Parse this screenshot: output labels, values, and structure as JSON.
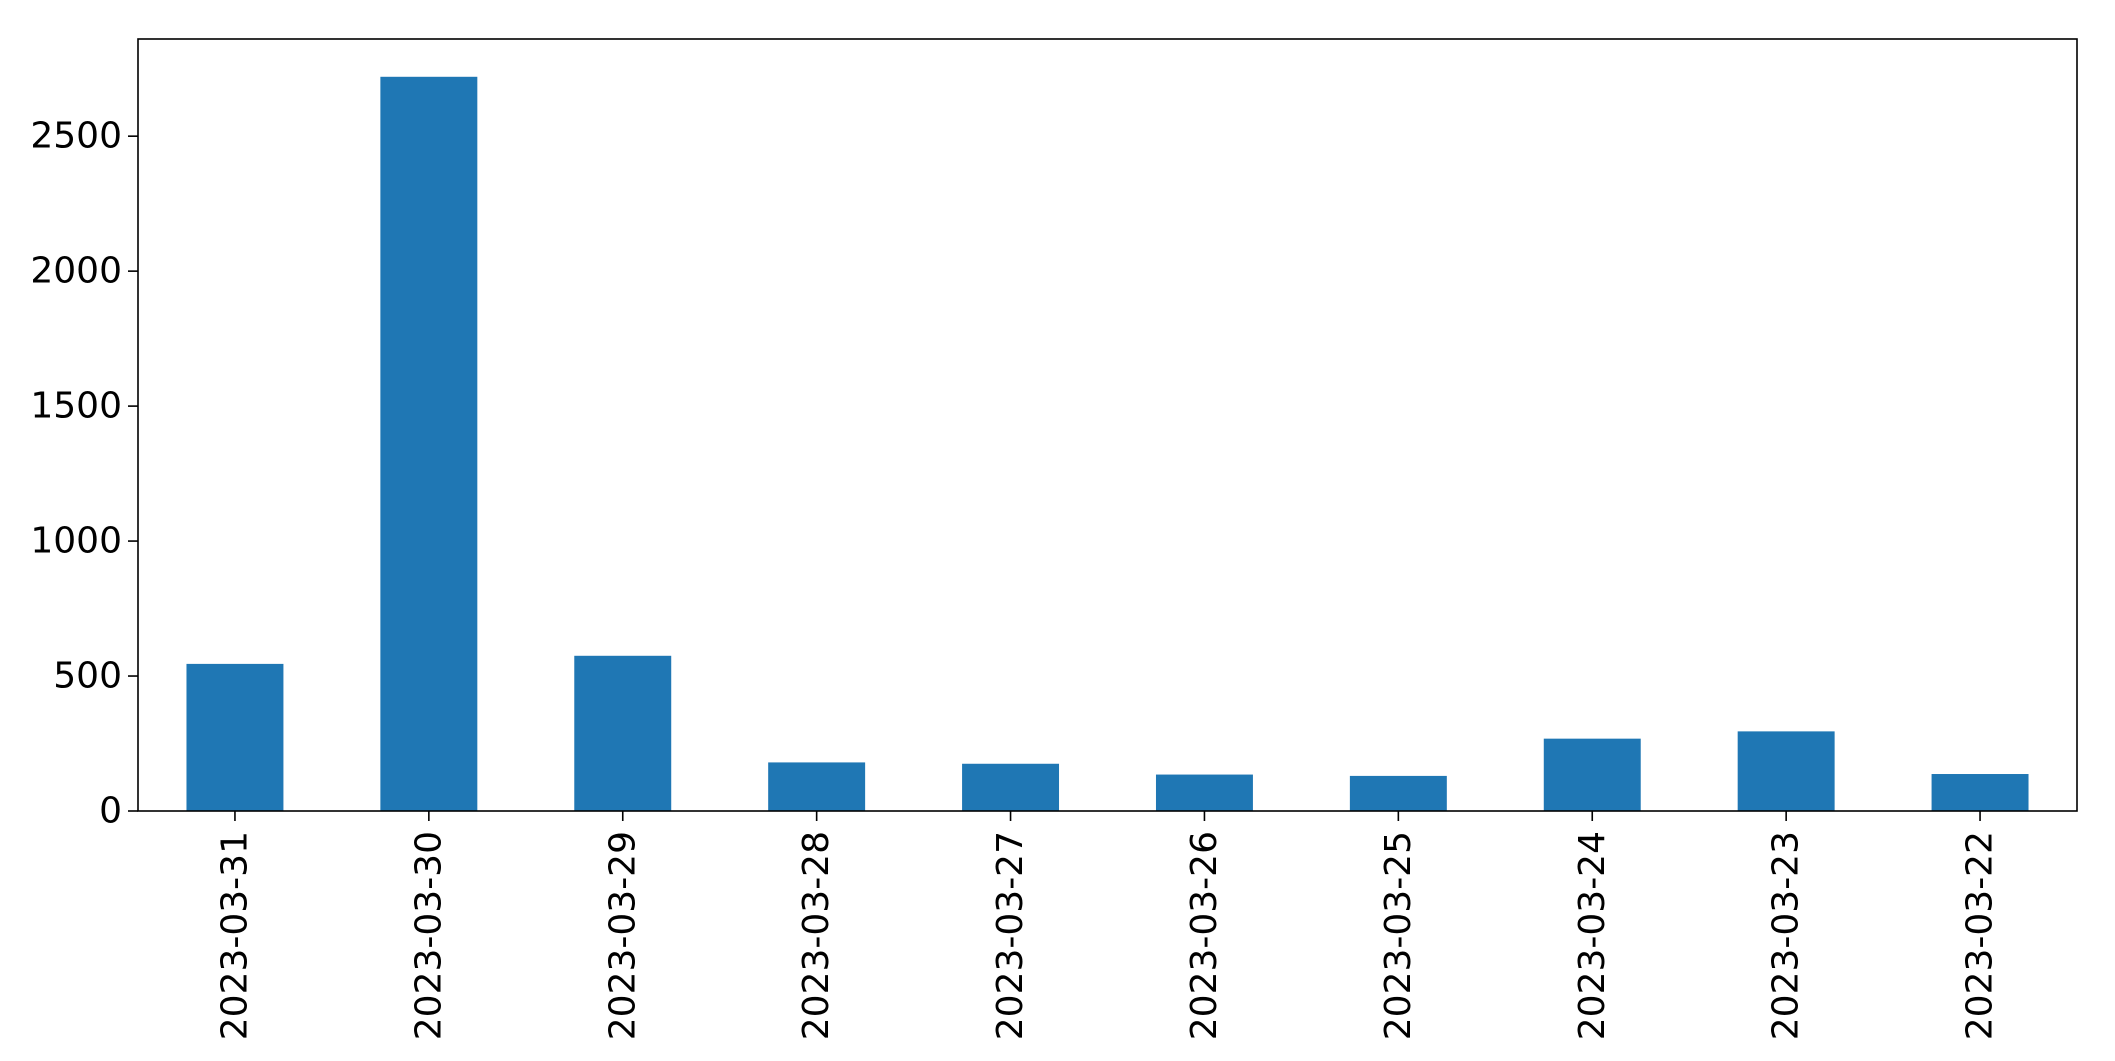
{
  "chart_data": {
    "type": "bar",
    "title": "",
    "xlabel": "",
    "ylabel": "",
    "categories": [
      "2023-03-31",
      "2023-03-30",
      "2023-03-29",
      "2023-03-28",
      "2023-03-27",
      "2023-03-26",
      "2023-03-25",
      "2023-03-24",
      "2023-03-23",
      "2023-03-22"
    ],
    "values": [
      545,
      2720,
      575,
      180,
      175,
      135,
      130,
      268,
      295,
      137
    ],
    "ylim": [
      0,
      2860
    ],
    "yticks": [
      0,
      500,
      1000,
      1500,
      2000,
      2500
    ],
    "ytick_labels": [
      "0",
      "500",
      "1000",
      "1500",
      "2000",
      "2500"
    ],
    "bar_color": "#1f77b4",
    "grid": false,
    "legend": "none"
  }
}
